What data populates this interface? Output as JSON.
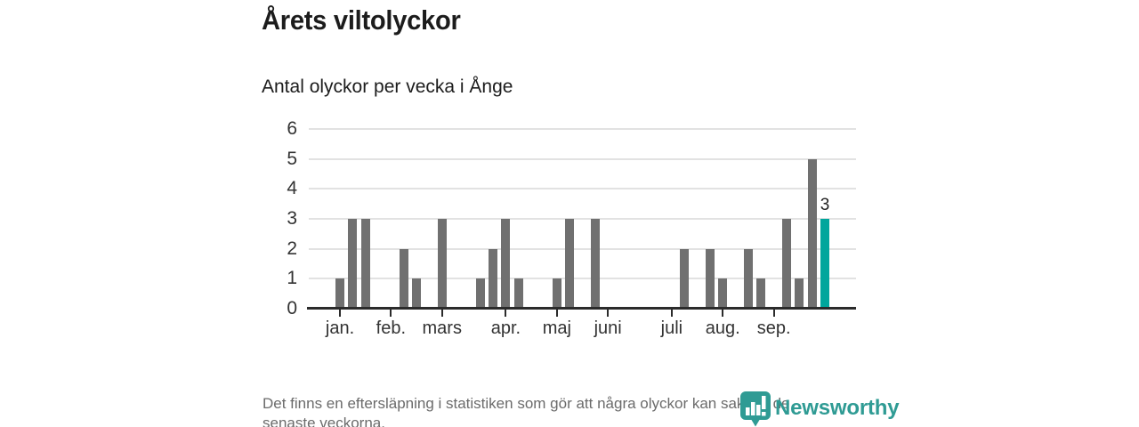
{
  "header": {
    "title": "Årets viltolyckor",
    "subtitle": "Antal olyckor per vecka i Ånge"
  },
  "chart_data": {
    "type": "bar",
    "title": "Årets viltolyckor",
    "subtitle": "Antal olyckor per vecka i Ånge",
    "x_unit": "vecka",
    "values": [
      1,
      3,
      3,
      0,
      0,
      2,
      1,
      0,
      3,
      0,
      0,
      1,
      2,
      3,
      1,
      0,
      0,
      1,
      3,
      0,
      3,
      0,
      0,
      0,
      0,
      0,
      0,
      2,
      0,
      2,
      1,
      0,
      2,
      1,
      0,
      3,
      1,
      5,
      3
    ],
    "highlight_last_bar": true,
    "last_bar_value_label": "3",
    "y_ticks": [
      0,
      1,
      2,
      3,
      4,
      5,
      6
    ],
    "ylim": [
      0,
      6
    ],
    "grid": "horizontal",
    "month_ticks": [
      {
        "label": "jan.",
        "week_index": 0
      },
      {
        "label": "feb.",
        "week_index": 4
      },
      {
        "label": "mars",
        "week_index": 8
      },
      {
        "label": "apr.",
        "week_index": 13
      },
      {
        "label": "maj",
        "week_index": 17
      },
      {
        "label": "juni",
        "week_index": 21
      },
      {
        "label": "juli",
        "week_index": 26
      },
      {
        "label": "aug.",
        "week_index": 30
      },
      {
        "label": "sep.",
        "week_index": 34
      }
    ]
  },
  "colors": {
    "bar": "#707070",
    "highlight": "#00a69c",
    "axis": "#2b2b2b",
    "gridline": "#e2e2e2",
    "brand_teal": "#2f9b94",
    "value_label": "#222222"
  },
  "footer": {
    "note_lines": [
      "Det finns en eftersläpning i statistiken som gör att några olyckor kan saknas de",
      "senaste veckorna."
    ],
    "brand_name": "Newsworthy",
    "brand_logo_icon": "pin-barchart-icon"
  }
}
